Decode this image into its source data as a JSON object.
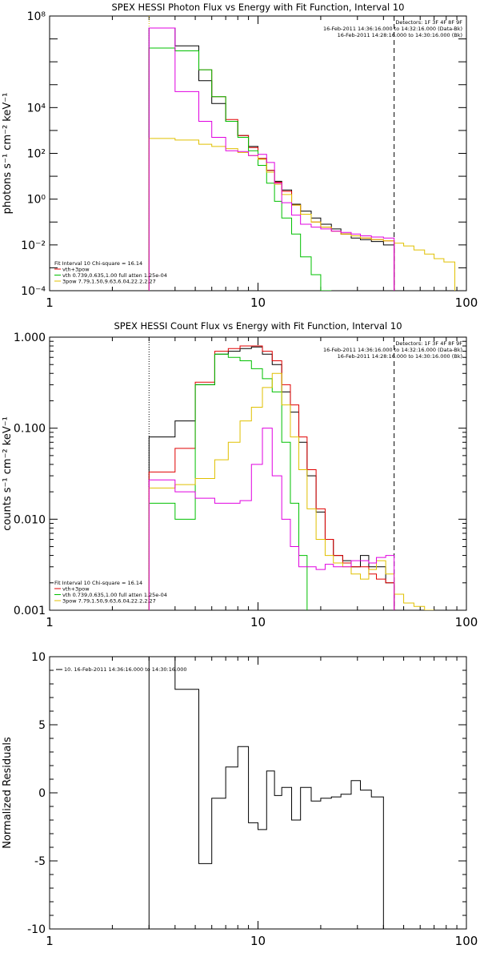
{
  "chart_data": [
    {
      "type": "line",
      "title": "SPEX HESSI Photon Flux vs Energy with Fit Function, Interval 10",
      "xlabel": "",
      "ylabel": "photons s⁻¹ cm⁻² keV⁻¹",
      "xscale": "log",
      "yscale": "log",
      "xlim": [
        1,
        100
      ],
      "ylim": [
        0.0001,
        100000000
      ],
      "x_ticks": [
        {
          "v": 1,
          "label": "1"
        },
        {
          "v": 10,
          "label": "10"
        },
        {
          "v": 100,
          "label": "100"
        }
      ],
      "y_ticks": [
        {
          "v": 0.0001,
          "label": "10⁻⁴"
        },
        {
          "v": 0.01,
          "label": "10⁻²"
        },
        {
          "v": 1,
          "label": "10⁰"
        },
        {
          "v": 100,
          "label": "10²"
        },
        {
          "v": 10000,
          "label": "10⁴"
        },
        {
          "v": 100000000,
          "label": "10⁸"
        }
      ],
      "vlines": [
        {
          "x": 3,
          "color": "#d4b400",
          "style": "dotted"
        },
        {
          "x": 45,
          "color": "#000000",
          "style": "dashed"
        }
      ],
      "header": [
        "Detectors: 1F 3F 4F 8F 9F",
        "16-Feb-2011 14:36:16.000 to 14:32:16.000 (Data-Bk)",
        "16-Feb-2011 14:28:16.000 to 14:30:16.000 (Bk)"
      ],
      "fit_lines": [
        "Fit Interval 10    Chi-square = 16.14",
        "vth+3pow",
        "vth 0.739,0.635,1.00  full atten 1.25e-04",
        "3pow 7.79,1.50,9.63,6.04,22.2,2.27"
      ],
      "series": [
        {
          "name": "Data-Bk",
          "color": "#000000",
          "x": [
            3.0,
            3.5,
            4,
            4.5,
            5.2,
            6,
            7,
            8,
            9,
            10,
            11,
            12,
            13,
            14.5,
            16,
            18,
            20,
            22.5,
            25,
            28,
            31,
            35,
            40,
            45
          ],
          "y": [
            30000000.0,
            30000000.0,
            5000000.0,
            5000000.0,
            150000.0,
            15000.0,
            2500.0,
            600.0,
            200.0,
            60,
            18,
            6,
            2.5,
            0.6,
            0.3,
            0.15,
            0.08,
            0.05,
            0.03,
            0.02,
            0.017,
            0.014,
            0.01,
            0.01
          ]
        },
        {
          "name": "vth+3pow",
          "color": "#e00000",
          "x": [
            3.0,
            3.5,
            4,
            4.5,
            5.2,
            6,
            7,
            8,
            9,
            10,
            11,
            12,
            13,
            14.5,
            16,
            18,
            20,
            22.5,
            25,
            28,
            31,
            35,
            40,
            45
          ],
          "y": [
            4000000.0,
            4000000.0,
            3000000.0,
            3000000.0,
            450000.0,
            30000.0,
            3000.0,
            600.0,
            180.0,
            60,
            18,
            5.5,
            2.2,
            0.55,
            0.22,
            0.1,
            0.06,
            0.04,
            0.03,
            0.025,
            0.02,
            0.017,
            0.015,
            0.015
          ]
        },
        {
          "name": "vth",
          "color": "#00c000",
          "x": [
            3.0,
            3.5,
            4,
            4.5,
            5.2,
            6,
            7,
            8,
            9,
            10,
            11,
            12,
            13,
            14.5,
            16,
            18,
            20,
            22.5
          ],
          "y": [
            4000000.0,
            4000000.0,
            3000000.0,
            3000000.0,
            450000.0,
            30000.0,
            2500.0,
            500.0,
            130.0,
            30,
            5,
            0.8,
            0.15,
            0.03,
            0.003,
            0.0005,
            0.0001,
            0.0001
          ]
        },
        {
          "name": "3pow",
          "color": "#e0c000",
          "x": [
            3.0,
            3.5,
            4,
            4.5,
            5.2,
            6,
            7,
            8,
            9,
            10,
            11,
            12,
            13,
            14.5,
            16,
            18,
            20,
            22.5,
            25,
            28,
            31,
            35,
            40,
            45,
            50,
            56,
            63,
            70,
            78,
            88
          ],
          "y": [
            450.0,
            450.0,
            380.0,
            380.0,
            250.0,
            200.0,
            160.0,
            110.0,
            80,
            55,
            15,
            4.5,
            1.6,
            0.55,
            0.22,
            0.1,
            0.06,
            0.04,
            0.03,
            0.025,
            0.02,
            0.017,
            0.015,
            0.012,
            0.009,
            0.006,
            0.004,
            0.0025,
            0.0018,
            0.0012
          ]
        },
        {
          "name": "Bk",
          "color": "#e000e0",
          "x": [
            3.0,
            3.5,
            4,
            4.5,
            5.2,
            6,
            7,
            8,
            9,
            10,
            11,
            12,
            13,
            14.5,
            16,
            18,
            20,
            22.5,
            25,
            28,
            31,
            35,
            40,
            45
          ],
          "y": [
            30000000.0,
            30000000.0,
            50000.0,
            50000.0,
            2500.0,
            500.0,
            130.0,
            120.0,
            80,
            90,
            40,
            5,
            0.7,
            0.2,
            0.08,
            0.06,
            0.05,
            0.04,
            0.035,
            0.03,
            0.025,
            0.022,
            0.02,
            0.02
          ]
        }
      ]
    },
    {
      "type": "line",
      "title": "SPEX HESSI Count Flux vs Energy with Fit Function, Interval 10",
      "xlabel": "",
      "ylabel": "counts s⁻¹ cm⁻² keV⁻¹",
      "xscale": "log",
      "yscale": "log",
      "xlim": [
        1,
        100
      ],
      "ylim": [
        0.001,
        1.0
      ],
      "x_ticks": [
        {
          "v": 1,
          "label": "1"
        },
        {
          "v": 10,
          "label": "10"
        },
        {
          "v": 100,
          "label": "100"
        }
      ],
      "y_ticks": [
        {
          "v": 0.001,
          "label": "0.001"
        },
        {
          "v": 0.01,
          "label": "0.010"
        },
        {
          "v": 0.1,
          "label": "0.100"
        },
        {
          "v": 1.0,
          "label": "1.000"
        }
      ],
      "vlines": [
        {
          "x": 3,
          "color": "#000000",
          "style": "dotted"
        },
        {
          "x": 45,
          "color": "#000000",
          "style": "dashed"
        }
      ],
      "header": [
        "Detectors: 1F 3F 4F 8F 9F",
        "16-Feb-2011 14:36:16.000 to 14:32:16.000 (Data-Bk)",
        "16-Feb-2011 14:28:16.000 to 14:30:16.000 (Bk)"
      ],
      "fit_lines": [
        "Fit Interval 10    Chi-square = 16.14",
        "vth+3pow",
        "vth 0.739,0.635,1.00  full atten 1.25e-04",
        "3pow 7.79,1.50,9.63,6.04,22.2,2.27"
      ],
      "series": [
        {
          "name": "Data-Bk",
          "color": "#000000",
          "x": [
            3.0,
            4,
            5,
            6.2,
            7.2,
            8.2,
            9.3,
            10.5,
            11.7,
            13,
            14.3,
            15.7,
            17.2,
            19,
            21,
            23,
            25.5,
            28,
            31,
            34,
            37,
            41,
            45
          ],
          "y": [
            0.08,
            0.12,
            0.3,
            0.65,
            0.7,
            0.75,
            0.78,
            0.65,
            0.5,
            0.25,
            0.15,
            0.07,
            0.03,
            0.012,
            0.006,
            0.004,
            0.0035,
            0.003,
            0.004,
            0.003,
            0.003,
            0.002,
            0.0015
          ]
        },
        {
          "name": "vth+3pow",
          "color": "#e00000",
          "x": [
            3.0,
            4,
            5,
            6.2,
            7.2,
            8.2,
            9.3,
            10.5,
            11.7,
            13,
            14.3,
            15.7,
            17.2,
            19,
            21,
            23,
            25.5,
            28,
            31,
            34,
            37,
            41,
            45
          ],
          "y": [
            0.033,
            0.06,
            0.32,
            0.7,
            0.75,
            0.8,
            0.8,
            0.7,
            0.55,
            0.3,
            0.18,
            0.08,
            0.035,
            0.013,
            0.006,
            0.004,
            0.0033,
            0.003,
            0.003,
            0.0025,
            0.0022,
            0.002,
            0.002
          ]
        },
        {
          "name": "vth",
          "color": "#00c000",
          "x": [
            3.0,
            4,
            5,
            6.2,
            7.2,
            8.2,
            9.3,
            10.5,
            11.7,
            13,
            14.3,
            15.7,
            17.2
          ],
          "y": [
            0.015,
            0.01,
            0.3,
            0.65,
            0.6,
            0.55,
            0.45,
            0.35,
            0.25,
            0.07,
            0.015,
            0.004,
            0.001
          ]
        },
        {
          "name": "3pow",
          "color": "#e0c000",
          "x": [
            3.0,
            4,
            5,
            6.2,
            7.2,
            8.2,
            9.3,
            10.5,
            11.7,
            13,
            14.3,
            15.7,
            17.2,
            19,
            21,
            23,
            25.5,
            28,
            31,
            34,
            37,
            41,
            45,
            50,
            56,
            63,
            70
          ],
          "y": [
            0.022,
            0.024,
            0.028,
            0.045,
            0.07,
            0.12,
            0.17,
            0.28,
            0.4,
            0.18,
            0.08,
            0.035,
            0.013,
            0.006,
            0.004,
            0.0033,
            0.003,
            0.0025,
            0.0022,
            0.0028,
            0.0035,
            0.0025,
            0.0015,
            0.0012,
            0.0011,
            0.001,
            0.001
          ]
        },
        {
          "name": "Bk",
          "color": "#e000e0",
          "x": [
            3.0,
            4,
            5,
            6.2,
            7.2,
            8.2,
            9.3,
            10.5,
            11.7,
            13,
            14.3,
            15.7,
            17.2,
            19,
            21,
            23,
            25.5,
            28,
            31,
            34,
            37,
            41,
            45
          ],
          "y": [
            0.027,
            0.02,
            0.017,
            0.015,
            0.015,
            0.016,
            0.04,
            0.1,
            0.03,
            0.01,
            0.005,
            0.003,
            0.003,
            0.0028,
            0.0032,
            0.003,
            0.003,
            0.0035,
            0.0035,
            0.0033,
            0.0038,
            0.004,
            0.001
          ]
        }
      ]
    },
    {
      "type": "line",
      "title": "",
      "xlabel": "",
      "ylabel": "Normalized Residuals",
      "xscale": "log",
      "yscale": "linear",
      "xlim": [
        1,
        100
      ],
      "ylim": [
        -10,
        10
      ],
      "x_ticks": [
        {
          "v": 1,
          "label": "1"
        },
        {
          "v": 10,
          "label": "10"
        },
        {
          "v": 100,
          "label": "100"
        }
      ],
      "y_ticks": [
        {
          "v": -10,
          "label": "-10"
        },
        {
          "v": -5,
          "label": "-5"
        },
        {
          "v": 0,
          "label": "0"
        },
        {
          "v": 5,
          "label": "5"
        },
        {
          "v": 10,
          "label": "10"
        }
      ],
      "legend": [
        {
          "label": "10. 16-Feb-2011 14:36:16.000 to 14:30:16.000",
          "color": "#000000"
        }
      ],
      "series": [
        {
          "name": "10. 16-Feb-2011 14:36:16.000 to 14:30:16.000",
          "color": "#000000",
          "x": [
            3.0,
            3.5,
            4,
            4.5,
            5.2,
            6,
            7,
            8,
            9,
            10,
            11,
            12,
            13,
            14.5,
            16,
            18,
            20,
            22.5,
            25,
            28,
            31,
            35,
            40,
            45
          ],
          "y": [
            10,
            10,
            7.6,
            7.6,
            -5.2,
            -0.4,
            1.9,
            3.4,
            -2.2,
            -2.7,
            1.6,
            -0.2,
            0.4,
            -2.0,
            0.4,
            -0.6,
            -0.4,
            -0.3,
            -0.1,
            0.9,
            0.2,
            -0.3,
            -10,
            -10
          ]
        }
      ]
    }
  ]
}
